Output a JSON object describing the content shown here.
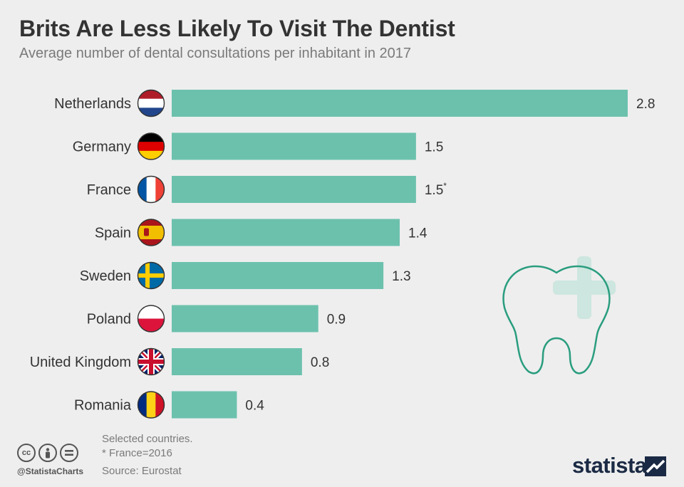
{
  "title": "Brits Are Less Likely To Visit The Dentist",
  "subtitle": "Average number of dental consultations per inhabitant in 2017",
  "footer": {
    "note1": "Selected countries.",
    "note2": "* France=2016",
    "source": "Source: Eurostat",
    "handle": "@StatistaCharts",
    "brand": "statista",
    "cc_icons": [
      "cc-icon",
      "attribution-icon",
      "no-derivatives-icon"
    ]
  },
  "colors": {
    "bar": "#6cc1ad",
    "text": "#333333",
    "background": "#eeeeee",
    "tooth": "#2a9d7f",
    "cross": "#cde6df"
  },
  "chart_data": {
    "type": "bar",
    "orientation": "horizontal",
    "title": "Brits Are Less Likely To Visit The Dentist",
    "subtitle": "Average number of dental consultations per inhabitant in 2017",
    "categories": [
      "Netherlands",
      "Germany",
      "France",
      "Spain",
      "Sweden",
      "Poland",
      "United Kingdom",
      "Romania"
    ],
    "values": [
      2.8,
      1.5,
      1.5,
      1.4,
      1.3,
      0.9,
      0.8,
      0.4
    ],
    "value_labels": [
      "2.8",
      "1.5",
      "1.5",
      "1.4",
      "1.3",
      "0.9",
      "0.8",
      "0.4"
    ],
    "value_suffix": [
      "",
      "",
      "*",
      "",
      "",
      "",
      "",
      ""
    ],
    "flags": [
      "netherlands-flag-icon",
      "germany-flag-icon",
      "france-flag-icon",
      "spain-flag-icon",
      "sweden-flag-icon",
      "poland-flag-icon",
      "united-kingdom-flag-icon",
      "romania-flag-icon"
    ],
    "xlim": [
      0,
      2.8
    ],
    "xlabel": "",
    "ylabel": "",
    "grid": false,
    "legend": "none"
  }
}
